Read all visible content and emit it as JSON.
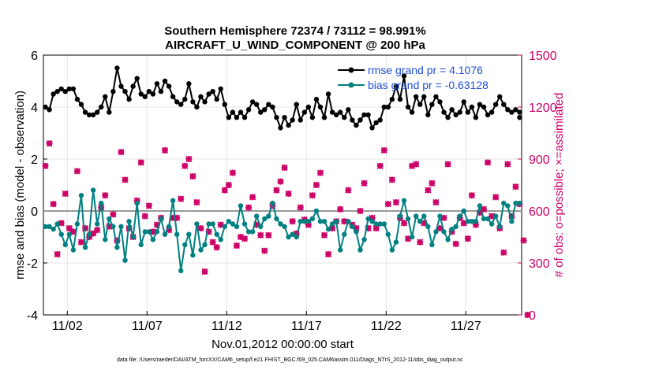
{
  "chart_data": {
    "type": "line",
    "title": "Southern Hemisphere 72374 / 73112 = 98.991%",
    "subtitle": "AIRCRAFT_U_WIND_COMPONENT @ 200 hPa",
    "xlabel": "Nov.01,2012 00:00:00 start",
    "ylabel_left": "rmse and bias (model - observation)",
    "ylabel_right": "# of obs: o=possible; ×=assimilated",
    "ylim_left": [
      -4,
      6
    ],
    "ylim_right": [
      0,
      1500
    ],
    "xlim": [
      0.5,
      30.5
    ],
    "yticks_left": [
      -4,
      -2,
      0,
      2,
      4,
      6
    ],
    "yticks_right": [
      0,
      300,
      600,
      900,
      1200,
      1500
    ],
    "xticks": [
      {
        "value": 2,
        "label": "11/02"
      },
      {
        "value": 7,
        "label": "11/07"
      },
      {
        "value": 12,
        "label": "11/12"
      },
      {
        "value": 17,
        "label": "11/17"
      },
      {
        "value": 22,
        "label": "11/22"
      },
      {
        "value": 27,
        "label": "11/27"
      }
    ],
    "grid": true,
    "legend_position": "top-right",
    "zero_line": 0,
    "series": [
      {
        "name": "rmse grand pr = 4.1076",
        "color": "#000000",
        "axis": "left",
        "x_start": 0.625,
        "x_step": 0.25,
        "values": [
          4.0,
          3.9,
          4.5,
          4.6,
          4.7,
          4.6,
          4.7,
          4.7,
          4.3,
          4.1,
          3.8,
          3.7,
          3.7,
          3.8,
          4.0,
          4.4,
          3.8,
          4.6,
          5.5,
          4.8,
          4.6,
          4.3,
          4.8,
          5.1,
          4.5,
          4.4,
          4.6,
          4.5,
          4.9,
          4.6,
          5.0,
          4.8,
          4.4,
          4.2,
          4.1,
          4.3,
          4.9,
          4.2,
          4.0,
          4.4,
          4.2,
          4.5,
          4.6,
          4.3,
          4.7,
          4.1,
          3.6,
          3.8,
          3.6,
          3.8,
          3.6,
          3.9,
          4.2,
          4.1,
          3.8,
          3.9,
          4.1,
          4.0,
          3.6,
          3.2,
          3.6,
          3.3,
          3.5,
          4.1,
          3.5,
          3.8,
          4.0,
          3.6,
          4.3,
          4.0,
          3.6,
          4.5,
          3.8,
          3.7,
          3.8,
          3.6,
          3.9,
          3.5,
          3.3,
          3.5,
          3.7,
          3.7,
          3.2,
          3.4,
          3.5,
          4.0,
          4.0,
          4.3,
          4.8,
          4.3,
          5.2,
          4.0,
          3.8,
          4.4,
          4.1,
          4.4,
          3.7,
          4.1,
          4.4,
          4.2,
          3.8,
          3.6,
          3.9,
          3.7,
          3.8,
          4.2,
          3.8,
          4.0,
          3.6,
          4.1,
          4.0,
          3.7,
          3.8,
          4.1,
          4.4,
          4.1,
          3.9,
          3.8,
          3.9,
          3.8
        ],
        "extra_points": [
          [
            30.375,
            3.6
          ]
        ]
      },
      {
        "name": "bias grand pr = -0.63128",
        "color": "#008080",
        "axis": "left",
        "x_start": 0.625,
        "x_step": 0.25,
        "values": [
          -0.6,
          -0.6,
          -0.7,
          -0.5,
          -0.9,
          -1.3,
          -0.9,
          -1.5,
          -0.5,
          0.6,
          -1.4,
          -0.9,
          0.8,
          -0.5,
          0.3,
          -1.1,
          -0.3,
          -0.6,
          -1.4,
          -0.6,
          -1.9,
          -0.4,
          -1.0,
          0.3,
          -1.3,
          -0.8,
          -0.8,
          -1.1,
          -0.8,
          -0.3,
          -0.9,
          -0.6,
          0.4,
          -0.9,
          -2.3,
          -1.3,
          -0.9,
          -1.7,
          -0.5,
          -1.5,
          -1.3,
          -0.5,
          -0.5,
          -0.9,
          -1.1,
          -0.6,
          -0.4,
          -0.5,
          -0.6,
          0.2,
          -0.5,
          -0.8,
          -0.8,
          -0.2,
          -0.6,
          -0.3,
          -0.2,
          0.3,
          -0.3,
          -0.5,
          -0.6,
          -1.0,
          -0.9,
          -1.0,
          -0.4,
          -0.4,
          -0.4,
          -0.3,
          0.0,
          -0.4,
          -0.4,
          -0.7,
          -0.5,
          -0.4,
          -1.5,
          -0.9,
          -0.4,
          -0.6,
          -0.8,
          -1.5,
          -1.1,
          -0.3,
          -0.4,
          -0.5,
          -0.5,
          -0.5,
          -0.9,
          -1.5,
          -1.2,
          -0.2,
          0.4,
          -0.3,
          -1.0,
          -0.2,
          -0.4,
          -0.2,
          -0.6,
          -1.3,
          -0.8,
          -0.2,
          -0.8,
          -1.1,
          -0.7,
          -0.6,
          -0.2,
          0.0,
          -0.4,
          -0.4,
          -0.4,
          0.2,
          -0.3,
          -0.3,
          -0.5,
          -0.2,
          -0.6,
          0.3,
          0.2,
          -0.4,
          0.3,
          0.3
        ],
        "extra_points": []
      },
      {
        "name": "obs possible",
        "color": "#cc0066",
        "axis": "right",
        "x_start": 0.625,
        "x_step": 0.25,
        "values": [
          860,
          990,
          640,
          350,
          530,
          700,
          500,
          480,
          830,
          420,
          500,
          450,
          470,
          490,
          620,
          690,
          510,
          580,
          430,
          940,
          780,
          500,
          450,
          660,
          880,
          570,
          630,
          480,
          520,
          560,
          950,
          490,
          560,
          560,
          670,
          860,
          900,
          800,
          650,
          500,
          250,
          480,
          420,
          390,
          520,
          720,
          750,
          820,
          400,
          450,
          440,
          620,
          680,
          520,
          460,
          370,
          460,
          630,
          720,
          770,
          850,
          700,
          540,
          470,
          620,
          550,
          520,
          690,
          750,
          820,
          460,
          350,
          500,
          540,
          610,
          540,
          720,
          520,
          500,
          600,
          760,
          500,
          560,
          500,
          860,
          950,
          640,
          780,
          650,
          560,
          530,
          440,
          860,
          870,
          420,
          530,
          720,
          760,
          650,
          500,
          560,
          870,
          480,
          410,
          560,
          530,
          440,
          690,
          520,
          590,
          610,
          880,
          570,
          680,
          500,
          360,
          870,
          570,
          740,
          640,
          430,
          0
        ]
      }
    ]
  },
  "footer": "data file: /Users/raeder/DAI/ATM_forcXX/CAM6_setup/f.e21.FHIST_BGC.f09_025.CAM6assim.011/Diags_NTrS_2012-11/obs_diag_output.nc"
}
